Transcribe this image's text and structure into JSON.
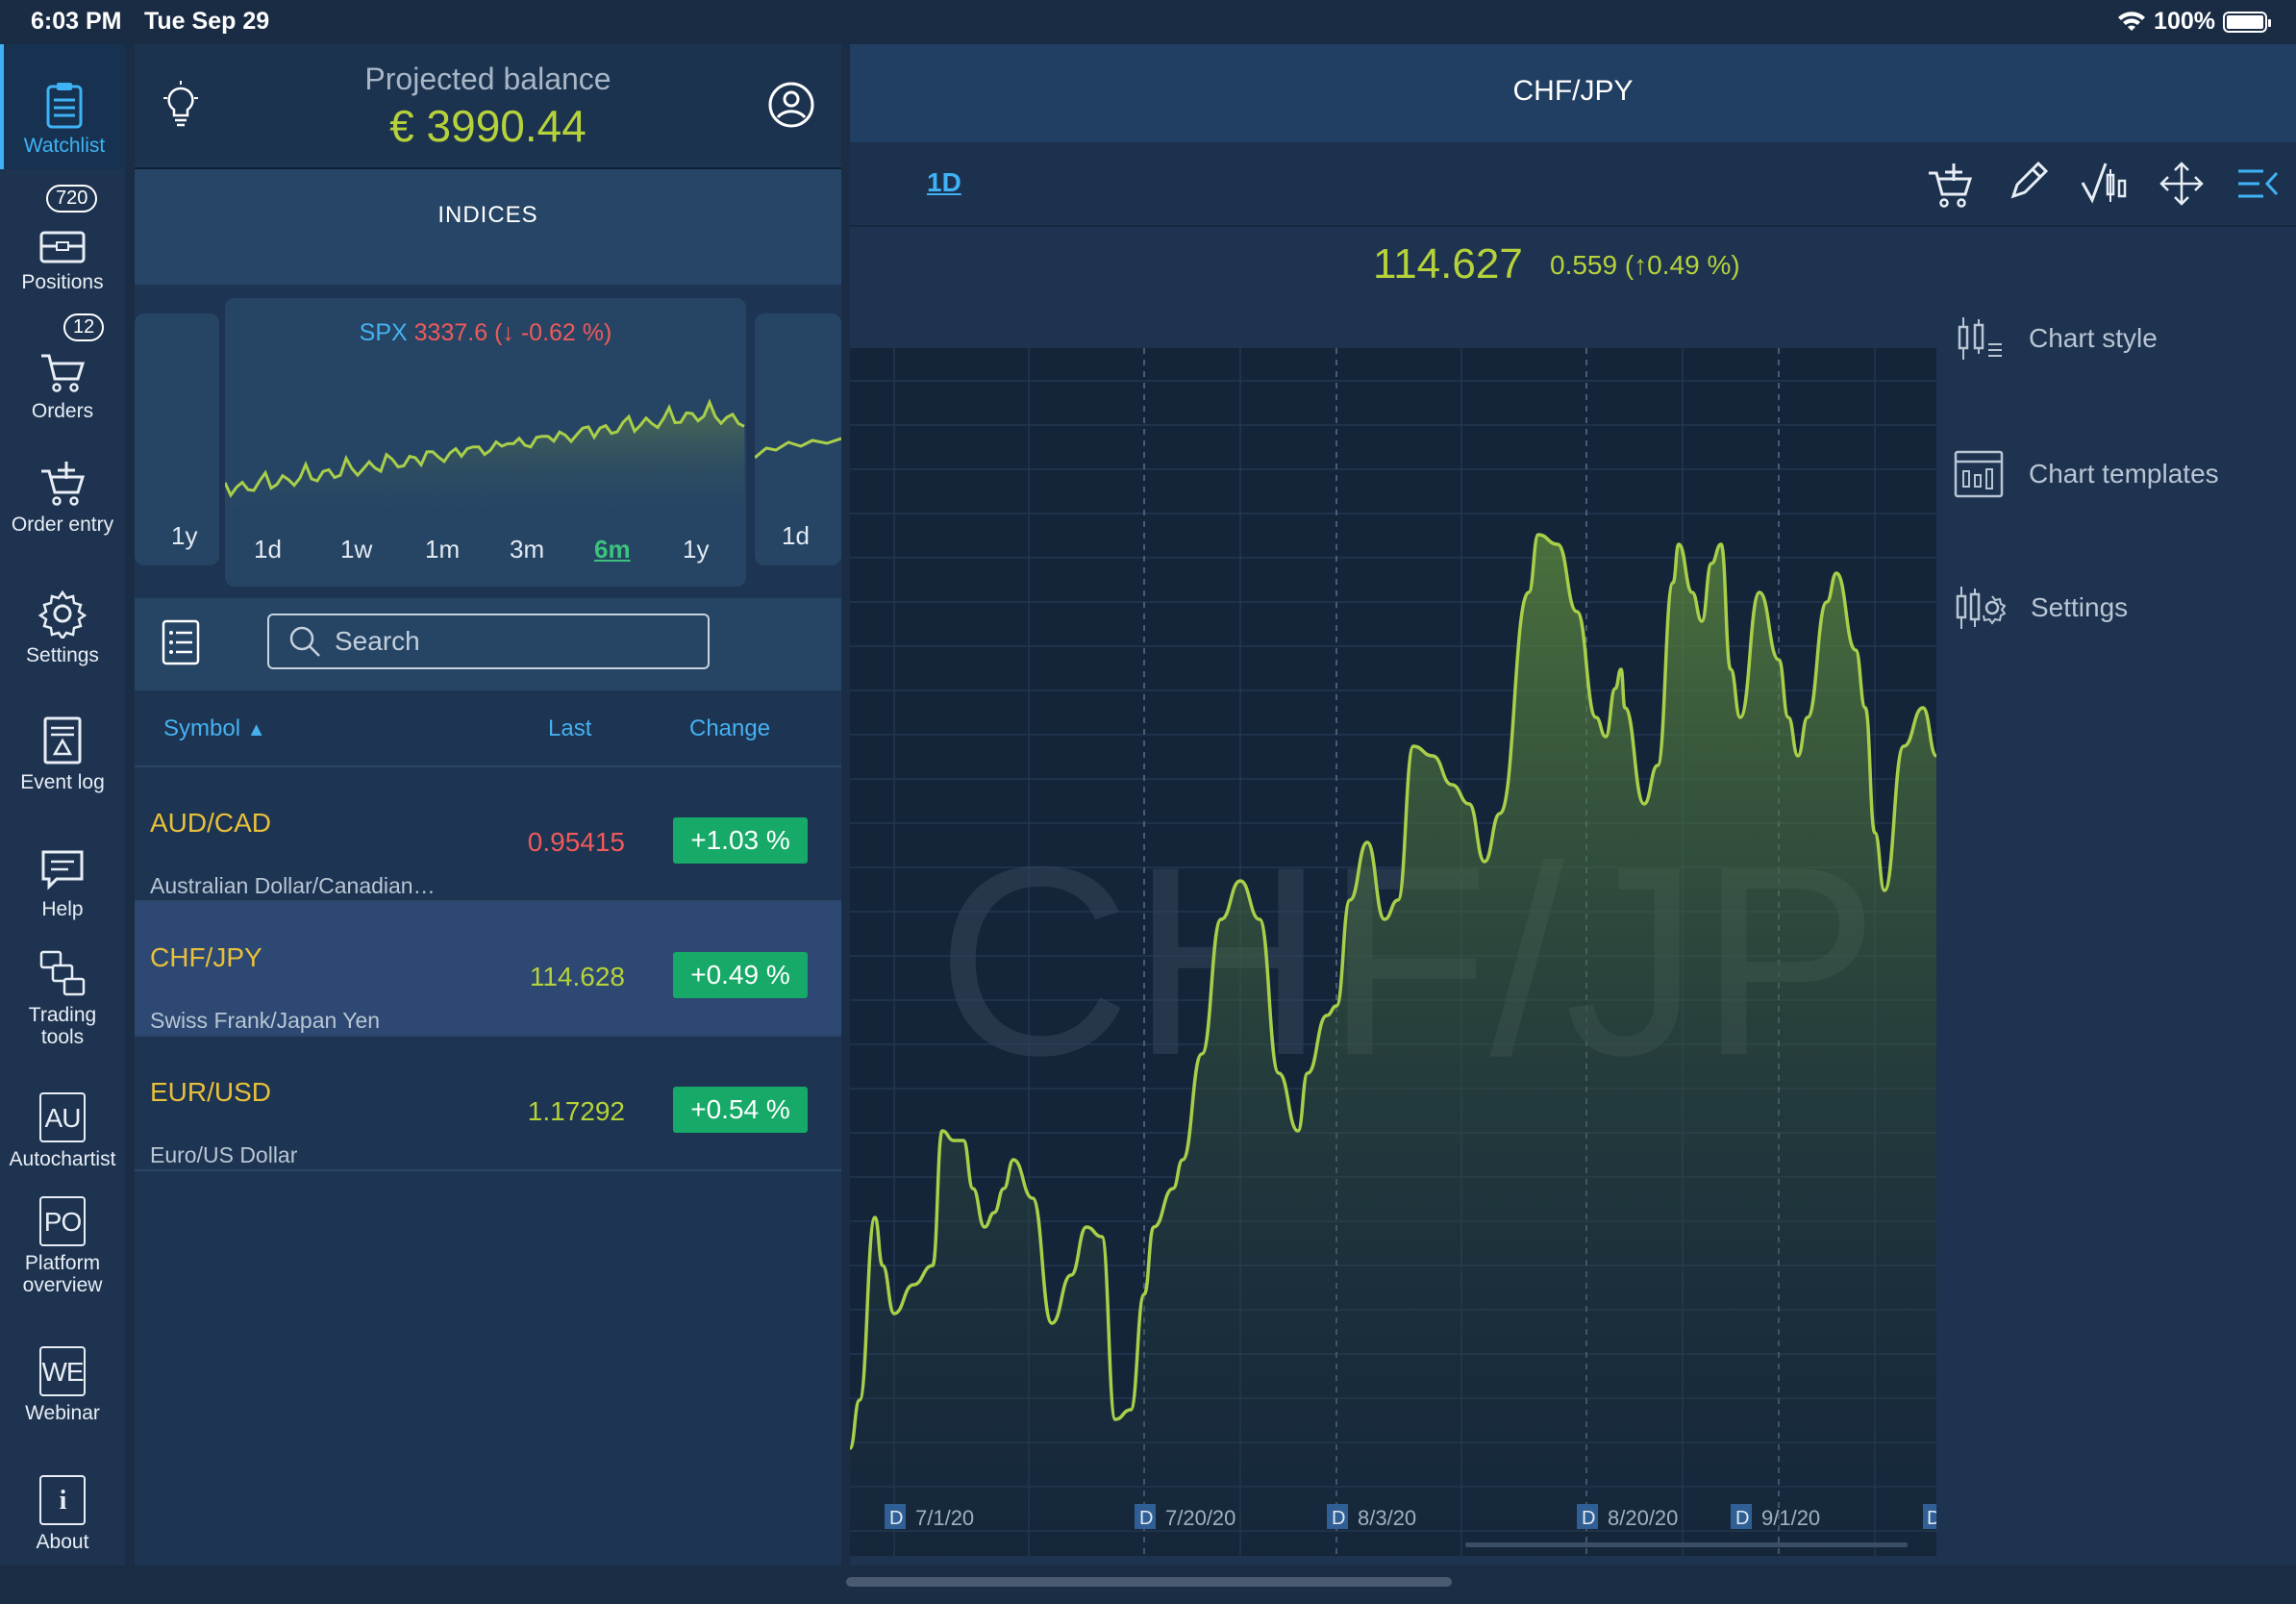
{
  "status": {
    "time": "6:03 PM",
    "date": "Tue Sep 29",
    "battery": "100%"
  },
  "sidebar": {
    "items": [
      {
        "label": "Watchlist",
        "icon": "clipboard-icon",
        "active": true
      },
      {
        "label": "Positions",
        "icon": "briefcase-icon",
        "badge": "720"
      },
      {
        "label": "Orders",
        "icon": "cart-icon",
        "badge": "12"
      },
      {
        "label": "Order entry",
        "icon": "cart-add-icon"
      },
      {
        "label": "Settings",
        "icon": "gear-icon"
      },
      {
        "label": "Event log",
        "icon": "log-icon"
      },
      {
        "label": "Help",
        "icon": "chat-icon"
      },
      {
        "label": "Trading tools",
        "icon": "tools-icon"
      },
      {
        "label": "Autochartist",
        "icon": "au-icon",
        "box": "AU"
      },
      {
        "label": "Platform overview",
        "icon": "po-icon",
        "box": "PO"
      },
      {
        "label": "Webinar",
        "icon": "we-icon",
        "box": "WE"
      },
      {
        "label": "About",
        "icon": "info-icon",
        "box": "i"
      }
    ]
  },
  "balance": {
    "label": "Projected balance",
    "value": "€ 3990.44"
  },
  "indices": {
    "label": "INDICES",
    "card": {
      "symbol": "SPX",
      "value": "3337.6",
      "change": "(↓ -0.62 %)"
    },
    "periods": [
      "1d",
      "1w",
      "1m",
      "3m",
      "6m",
      "1y"
    ],
    "active_period": "6m",
    "left_card_period": "1y",
    "right_card_period": "1d",
    "spark_color": "#a9cf4a"
  },
  "search": {
    "placeholder": "Search"
  },
  "columns": {
    "symbol": "Symbol",
    "last": "Last",
    "change": "Change"
  },
  "rows": [
    {
      "symbol": "AUD/CAD",
      "desc": "Australian Dollar/Canadian…",
      "last": "0.95415",
      "last_color": "#f05a5a",
      "change": "+1.03 %"
    },
    {
      "symbol": "CHF/JPY",
      "desc": "Swiss Frank/Japan Yen",
      "last": "114.628",
      "last_color": "#b6d23a",
      "change": "+0.49 %",
      "selected": true
    },
    {
      "symbol": "EUR/USD",
      "desc": "Euro/US Dollar",
      "last": "1.17292",
      "last_color": "#b6d23a",
      "change": "+0.54 %"
    }
  ],
  "chart": {
    "title": "CHF/JPY",
    "timeframe": "1D",
    "price": "114.627",
    "change": "0.559 (↑0.49 %)",
    "watermark": "CHF/JP",
    "line_color": "#a9cf4a",
    "dates": [
      "7/1/20",
      "7/20/20",
      "8/3/20",
      "8/20/20",
      "9/1/20"
    ],
    "date_marker": "D"
  },
  "menu": {
    "items": [
      {
        "label": "Chart style",
        "icon": "candles-icon"
      },
      {
        "label": "Chart templates",
        "icon": "template-icon"
      },
      {
        "label": "Settings",
        "icon": "candle-gear-icon"
      }
    ]
  }
}
